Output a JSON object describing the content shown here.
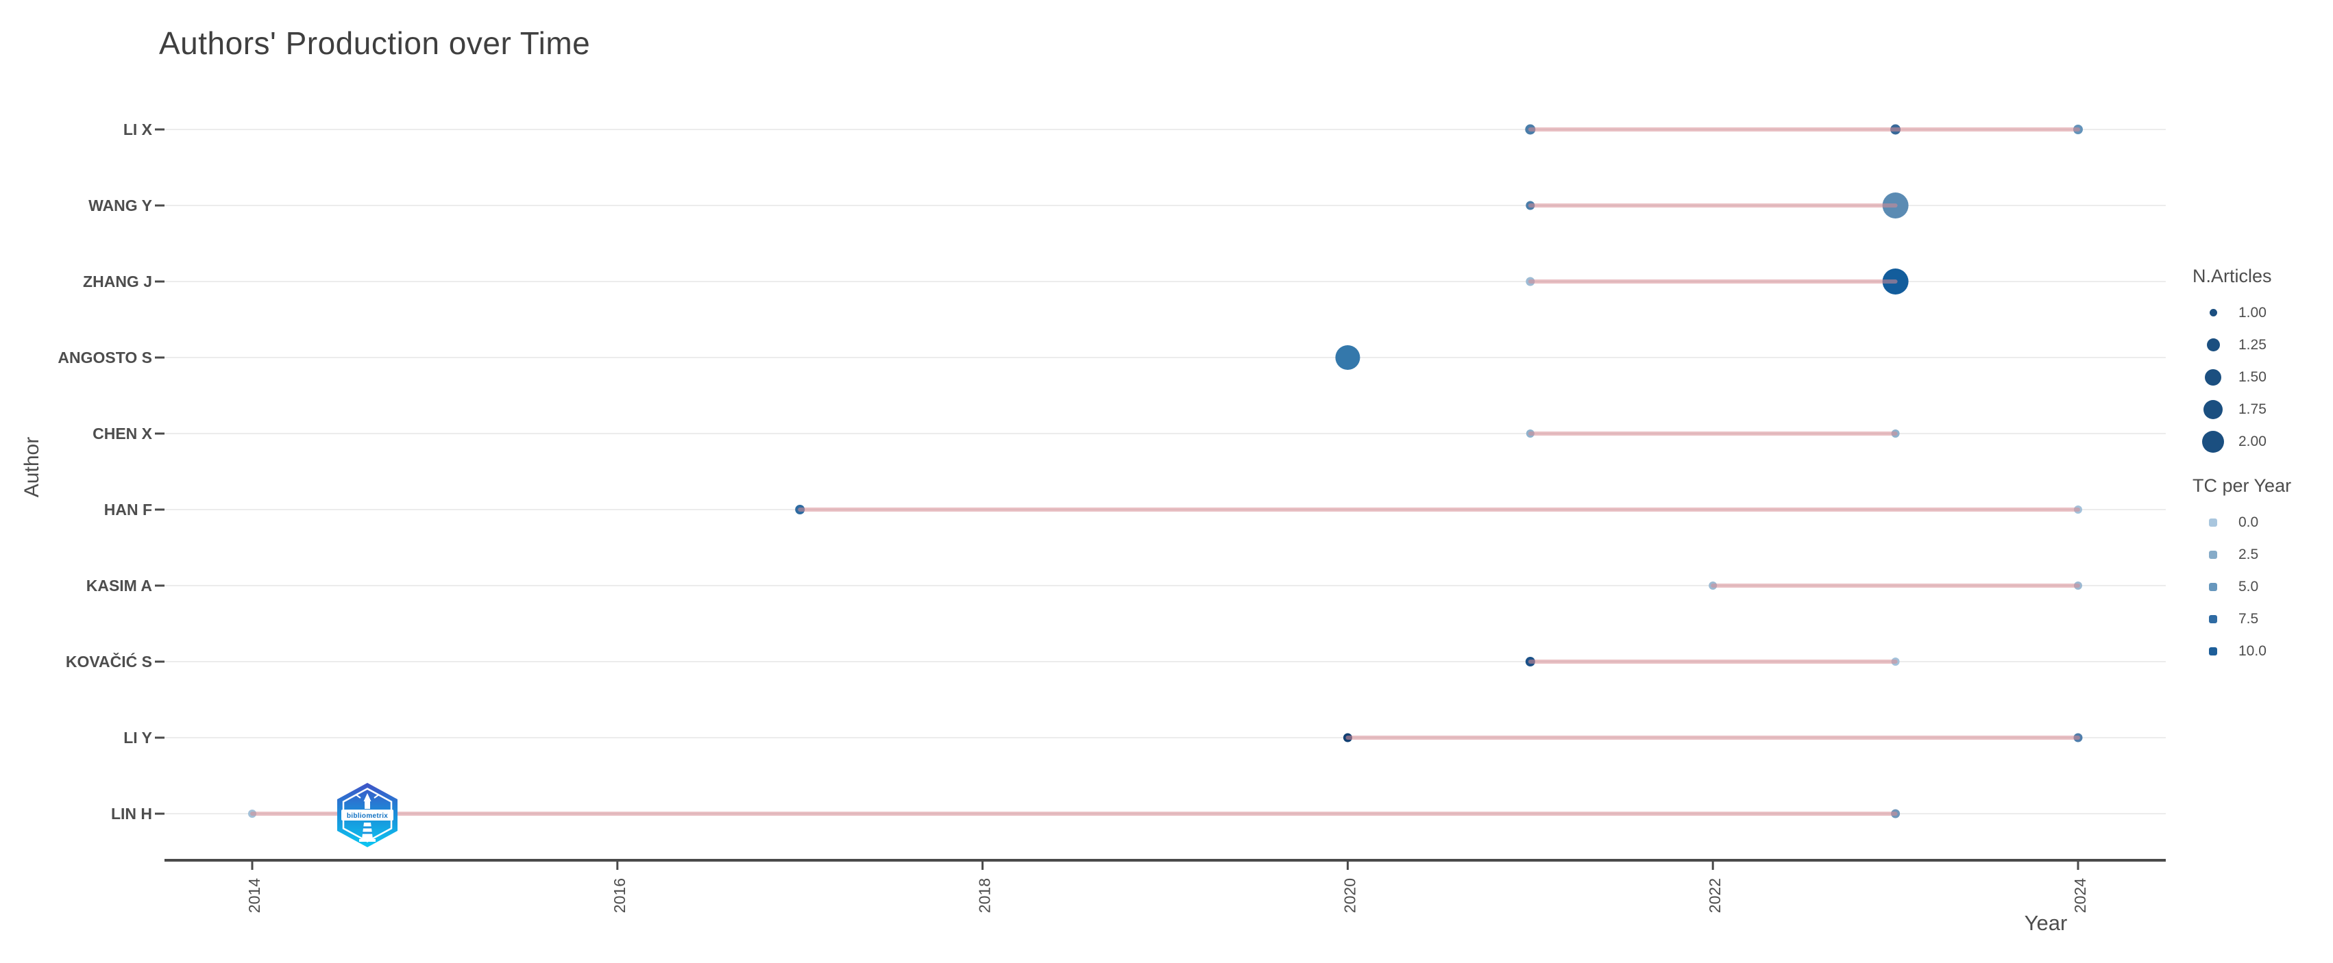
{
  "title": "Authors' Production over Time",
  "x_axis": {
    "label": "Year"
  },
  "y_axis": {
    "label": "Author"
  },
  "legend": {
    "size_legend": {
      "title": "N.Articles",
      "dot_color": "#1b4f80",
      "items": [
        {
          "label": "1.00",
          "d": 11
        },
        {
          "label": "1.25",
          "d": 19
        },
        {
          "label": "1.50",
          "d": 24
        },
        {
          "label": "1.75",
          "d": 28
        },
        {
          "label": "2.00",
          "d": 32
        }
      ]
    },
    "color_legend": {
      "title": "TC per Year",
      "items": [
        {
          "label": "0.0",
          "color": "#a9c6de"
        },
        {
          "label": "2.5",
          "color": "#86abc8"
        },
        {
          "label": "5.0",
          "color": "#6797bd"
        },
        {
          "label": "7.5",
          "color": "#2f6ba3"
        },
        {
          "label": "10.0",
          "color": "#1d5e99"
        }
      ]
    }
  },
  "logo": {
    "label": "bibliometrix"
  },
  "chart_data": {
    "type": "scatter",
    "title": "Authors' Production over Time",
    "xlabel": "Year",
    "ylabel": "Author",
    "x_ticks": [
      2014,
      2016,
      2018,
      2020,
      2022,
      2024
    ],
    "x_range": [
      2013.5,
      2024.5
    ],
    "grid": true,
    "legend_position": "right",
    "line_color": "#d78c93",
    "grid_color": "#ececec",
    "series": [
      {
        "author": "LI X",
        "line": [
          2021,
          2024
        ],
        "points": [
          {
            "year": 2021,
            "n_articles": 1,
            "tc_per_year": 6,
            "color": "#4a7da9",
            "d": 15
          },
          {
            "year": 2023,
            "n_articles": 1,
            "tc_per_year": 7.5,
            "color": "#38699a",
            "d": 15
          },
          {
            "year": 2024,
            "n_articles": 1,
            "tc_per_year": 4.5,
            "color": "#6493ba",
            "d": 14
          }
        ]
      },
      {
        "author": "WANG Y",
        "line": [
          2021,
          2023
        ],
        "points": [
          {
            "year": 2021,
            "n_articles": 1,
            "tc_per_year": 6,
            "color": "#4a7da9",
            "d": 13
          },
          {
            "year": 2023,
            "n_articles": 2,
            "tc_per_year": 5,
            "color": "#5b8bb3",
            "d": 38
          }
        ]
      },
      {
        "author": "ZHANG J",
        "line": [
          2021,
          2023
        ],
        "points": [
          {
            "year": 2021,
            "n_articles": 1,
            "tc_per_year": 1.5,
            "color": "#9dbbd4",
            "d": 13
          },
          {
            "year": 2023,
            "n_articles": 2,
            "tc_per_year": 10,
            "color": "#135d9c",
            "d": 38
          }
        ]
      },
      {
        "author": "ANGOSTO S",
        "line": null,
        "points": [
          {
            "year": 2020,
            "n_articles": 2,
            "tc_per_year": 7,
            "color": "#3478ab",
            "d": 36
          }
        ]
      },
      {
        "author": "CHEN X",
        "line": [
          2021,
          2023
        ],
        "points": [
          {
            "year": 2021,
            "n_articles": 1,
            "tc_per_year": 2.5,
            "color": "#8fb2cd",
            "d": 12
          },
          {
            "year": 2023,
            "n_articles": 1,
            "tc_per_year": 2.5,
            "color": "#8fb2cd",
            "d": 12
          }
        ]
      },
      {
        "author": "HAN F",
        "line": [
          2017,
          2024
        ],
        "points": [
          {
            "year": 2017,
            "n_articles": 1,
            "tc_per_year": 8,
            "color": "#2e6ba1",
            "d": 14
          },
          {
            "year": 2024,
            "n_articles": 1,
            "tc_per_year": 1,
            "color": "#a3c1da",
            "d": 12
          }
        ]
      },
      {
        "author": "KASIM A",
        "line": [
          2022,
          2024
        ],
        "points": [
          {
            "year": 2022,
            "n_articles": 1,
            "tc_per_year": 2,
            "color": "#9cb9d2",
            "d": 12
          },
          {
            "year": 2024,
            "n_articles": 1,
            "tc_per_year": 2,
            "color": "#9cb9d2",
            "d": 12
          }
        ]
      },
      {
        "author": "KOVAČIĆ S",
        "line": [
          2021,
          2023
        ],
        "points": [
          {
            "year": 2021,
            "n_articles": 1,
            "tc_per_year": 10,
            "color": "#1b5188",
            "d": 14
          },
          {
            "year": 2023,
            "n_articles": 1,
            "tc_per_year": 1,
            "color": "#a3c1da",
            "d": 12
          }
        ]
      },
      {
        "author": "LI Y",
        "line": [
          2020,
          2024
        ],
        "points": [
          {
            "year": 2020,
            "n_articles": 1,
            "tc_per_year": 12,
            "color": "#123f72",
            "d": 13
          },
          {
            "year": 2024,
            "n_articles": 1,
            "tc_per_year": 6,
            "color": "#4f7dab",
            "d": 13
          }
        ]
      },
      {
        "author": "LIN H",
        "line": [
          2014,
          2023
        ],
        "points": [
          {
            "year": 2014,
            "n_articles": 1,
            "tc_per_year": 1,
            "color": "#a3c0d8",
            "d": 12
          },
          {
            "year": 2023,
            "n_articles": 1,
            "tc_per_year": 4,
            "color": "#7096ba",
            "d": 13
          }
        ]
      }
    ]
  }
}
